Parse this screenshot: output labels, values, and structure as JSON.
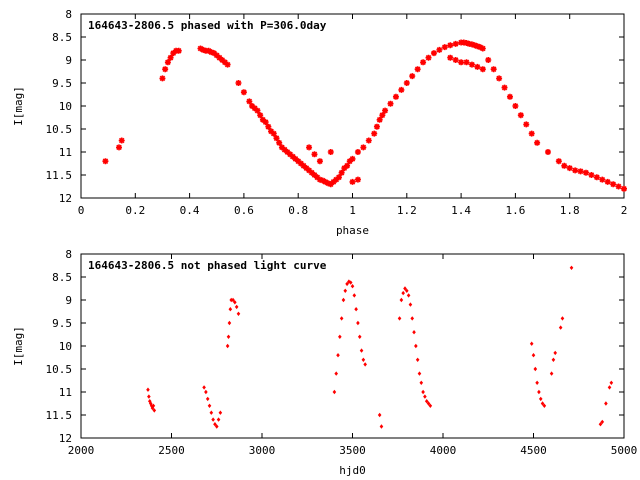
{
  "chart_data": [
    {
      "type": "scatter",
      "title": "164643-2806.5 phased with P=306.0day",
      "xlabel": "phase",
      "ylabel": "I[mag]",
      "xlim": [
        0,
        2
      ],
      "ylim": [
        12,
        8
      ],
      "y_inverted": true,
      "xticks": [
        "0",
        "0.2",
        "0.4",
        "0.6",
        "0.8",
        "1",
        "1.2",
        "1.4",
        "1.6",
        "1.8",
        "2"
      ],
      "yticks": [
        "8",
        "8.5",
        "9",
        "9.5",
        "10",
        "10.5",
        "11",
        "11.5",
        "12"
      ],
      "grid": false,
      "marker_color": "#ff0000",
      "series": [
        {
          "x": [
            0.09,
            0.14,
            0.15,
            0.3,
            0.31,
            0.32,
            0.33,
            0.34,
            0.35,
            0.36,
            0.44,
            0.45,
            0.46,
            0.47,
            0.48,
            0.49,
            0.5,
            0.51,
            0.52,
            0.53,
            0.54,
            0.58,
            0.6,
            0.62,
            0.63,
            0.64,
            0.65,
            0.66,
            0.67,
            0.68,
            0.69,
            0.7,
            0.71,
            0.72,
            0.73,
            0.74,
            0.75,
            0.76,
            0.77,
            0.78,
            0.79,
            0.8,
            0.81,
            0.82,
            0.83,
            0.84,
            0.85,
            0.86,
            0.87,
            0.88,
            0.89,
            0.9,
            0.91,
            0.92,
            0.93,
            0.94,
            0.95,
            0.96,
            0.97,
            0.98,
            0.99,
            1.0,
            1.02,
            1.04,
            1.06,
            1.08,
            1.09,
            1.1,
            1.11,
            1.12,
            1.14,
            1.16,
            1.18,
            1.2,
            1.22,
            1.24,
            1.26,
            1.28,
            1.3,
            1.32,
            1.34,
            1.36,
            1.38,
            1.4,
            1.41,
            1.42,
            1.43,
            1.44,
            1.45,
            1.46,
            1.47,
            1.48,
            1.5,
            1.52,
            1.54,
            1.56,
            1.58,
            1.6,
            1.62,
            1.64,
            1.66,
            1.68,
            1.72,
            1.76,
            1.78,
            1.8,
            1.82,
            1.84,
            1.86,
            1.88,
            1.9,
            1.92,
            1.94,
            1.96,
            1.98,
            2.0,
            1.42,
            1.44,
            1.46,
            1.48,
            1.36,
            1.38,
            1.4,
            0.92,
            0.84,
            0.86,
            0.88,
            1.0,
            1.02
          ],
          "y": [
            11.2,
            10.9,
            10.75,
            9.4,
            9.2,
            9.05,
            8.95,
            8.85,
            8.8,
            8.8,
            8.75,
            8.78,
            8.8,
            8.8,
            8.83,
            8.85,
            8.9,
            8.95,
            9.0,
            9.05,
            9.1,
            9.5,
            9.7,
            9.9,
            10.0,
            10.05,
            10.1,
            10.2,
            10.3,
            10.35,
            10.45,
            10.55,
            10.6,
            10.7,
            10.8,
            10.9,
            10.95,
            11.0,
            11.05,
            11.1,
            11.15,
            11.2,
            11.25,
            11.3,
            11.35,
            11.4,
            11.45,
            11.5,
            11.55,
            11.6,
            11.62,
            11.65,
            11.68,
            11.7,
            11.65,
            11.6,
            11.55,
            11.45,
            11.35,
            11.3,
            11.2,
            11.15,
            11.0,
            10.9,
            10.75,
            10.6,
            10.45,
            10.3,
            10.2,
            10.1,
            9.95,
            9.8,
            9.65,
            9.5,
            9.35,
            9.2,
            9.05,
            8.95,
            8.85,
            8.78,
            8.72,
            8.68,
            8.65,
            8.62,
            8.62,
            8.63,
            8.65,
            8.66,
            8.68,
            8.7,
            8.72,
            8.75,
            9.0,
            9.2,
            9.4,
            9.6,
            9.8,
            10.0,
            10.2,
            10.4,
            10.6,
            10.8,
            11.0,
            11.2,
            11.3,
            11.35,
            11.4,
            11.42,
            11.45,
            11.5,
            11.55,
            11.6,
            11.65,
            11.7,
            11.75,
            11.8,
            9.05,
            9.1,
            9.15,
            9.2,
            8.95,
            9.0,
            9.05,
            11.0,
            10.9,
            11.05,
            11.2,
            11.65,
            11.6
          ]
        }
      ]
    },
    {
      "type": "scatter",
      "title": "164643-2806.5 not phased light curve",
      "xlabel": "hjd0",
      "ylabel": "I[mag]",
      "xlim": [
        2000,
        5000
      ],
      "ylim": [
        12,
        8
      ],
      "y_inverted": true,
      "xticks": [
        "2000",
        "2500",
        "3000",
        "3500",
        "4000",
        "4500",
        "5000"
      ],
      "yticks": [
        "8",
        "8.5",
        "9",
        "9.5",
        "10",
        "10.5",
        "11",
        "11.5",
        "12"
      ],
      "grid": false,
      "marker_color": "#ff0000",
      "series": [
        {
          "x": [
            2370,
            2375,
            2380,
            2385,
            2390,
            2395,
            2400,
            2405,
            2680,
            2690,
            2700,
            2710,
            2720,
            2730,
            2740,
            2750,
            2760,
            2770,
            2810,
            2815,
            2820,
            2825,
            2830,
            2840,
            2850,
            2860,
            2870,
            3400,
            3410,
            3420,
            3430,
            3440,
            3450,
            3460,
            3470,
            3480,
            3490,
            3500,
            3510,
            3520,
            3530,
            3540,
            3550,
            3560,
            3570,
            3650,
            3660,
            3760,
            3770,
            3780,
            3790,
            3800,
            3810,
            3820,
            3830,
            3840,
            3850,
            3860,
            3870,
            3880,
            3890,
            3900,
            3910,
            3920,
            3930,
            4490,
            4500,
            4510,
            4520,
            4530,
            4540,
            4550,
            4560,
            4600,
            4610,
            4620,
            4650,
            4660,
            4710,
            4870,
            4880,
            4900,
            4920,
            4930
          ],
          "y": [
            10.95,
            11.1,
            11.2,
            11.25,
            11.3,
            11.35,
            11.3,
            11.4,
            10.9,
            11.0,
            11.15,
            11.3,
            11.45,
            11.6,
            11.7,
            11.75,
            11.6,
            11.45,
            10.0,
            9.8,
            9.5,
            9.2,
            9.0,
            9.0,
            9.05,
            9.15,
            9.3,
            11.0,
            10.6,
            10.2,
            9.8,
            9.4,
            9.0,
            8.8,
            8.65,
            8.6,
            8.62,
            8.7,
            8.9,
            9.2,
            9.5,
            9.8,
            10.1,
            10.3,
            10.4,
            11.5,
            11.75,
            9.4,
            9.0,
            8.85,
            8.75,
            8.8,
            8.9,
            9.1,
            9.4,
            9.7,
            10.0,
            10.3,
            10.6,
            10.8,
            11.0,
            11.1,
            11.2,
            11.25,
            11.3,
            9.95,
            10.2,
            10.5,
            10.8,
            11.0,
            11.15,
            11.25,
            11.3,
            10.6,
            10.3,
            10.15,
            9.6,
            9.4,
            8.3,
            11.7,
            11.65,
            11.25,
            10.9,
            10.8
          ]
        }
      ]
    }
  ]
}
